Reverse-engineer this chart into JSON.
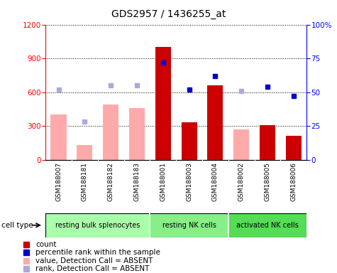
{
  "title": "GDS2957 / 1436255_at",
  "samples": [
    "GSM188007",
    "GSM188181",
    "GSM188182",
    "GSM188183",
    "GSM188001",
    "GSM188003",
    "GSM188004",
    "GSM188002",
    "GSM188005",
    "GSM188006"
  ],
  "count_present": [
    null,
    null,
    null,
    null,
    1000,
    330,
    660,
    null,
    310,
    210
  ],
  "count_absent": [
    400,
    130,
    490,
    460,
    null,
    null,
    null,
    270,
    null,
    null
  ],
  "rank_present": [
    null,
    null,
    null,
    null,
    72,
    52,
    62,
    null,
    54,
    47
  ],
  "rank_absent": [
    52,
    28,
    55,
    55,
    null,
    null,
    null,
    51,
    null,
    null
  ],
  "cell_types": [
    {
      "label": "resting bulk splenocytes",
      "start": 0,
      "end": 4,
      "color": "#aaffaa"
    },
    {
      "label": "resting NK cells",
      "start": 4,
      "end": 7,
      "color": "#88ee88"
    },
    {
      "label": "activated NK cells",
      "start": 7,
      "end": 10,
      "color": "#55dd55"
    }
  ],
  "ylim_left": [
    0,
    1200
  ],
  "ylim_right": [
    0,
    100
  ],
  "yticks_left": [
    0,
    300,
    600,
    900,
    1200
  ],
  "yticks_right": [
    0,
    25,
    50,
    75,
    100
  ],
  "color_present_bar": "#cc0000",
  "color_absent_bar": "#ffaaaa",
  "color_present_rank": "#0000cc",
  "color_absent_rank": "#aaaadd",
  "sample_bg": "#cccccc",
  "plot_bg": "#ffffff"
}
